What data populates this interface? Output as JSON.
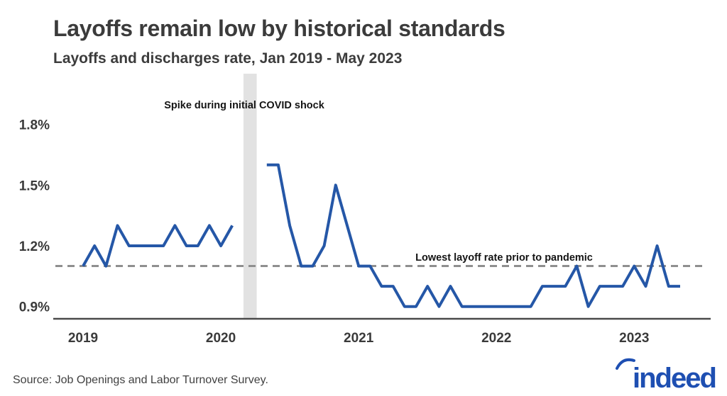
{
  "header": {
    "title": "Layoffs remain low by historical standards",
    "subtitle": "Layoffs and discharges rate, Jan 2019 - May 2023"
  },
  "chart_data": {
    "type": "line",
    "title": "Layoffs remain low by historical standards",
    "subtitle": "Layoffs and discharges rate, Jan 2019 - May 2023",
    "x_unit": "month",
    "x_range": [
      "2019-01",
      "2023-05"
    ],
    "x_tick_labels": [
      "2019",
      "2020",
      "2021",
      "2022",
      "2023"
    ],
    "x_tick_month_index": [
      0,
      12,
      24,
      36,
      48
    ],
    "y_tick_labels": [
      "1.8%",
      "1.5%",
      "1.2%",
      "0.9%"
    ],
    "y_tick_values": [
      1.8,
      1.5,
      1.2,
      0.9
    ],
    "ylim": [
      0.78,
      1.98
    ],
    "grid": "off",
    "legend": "none",
    "series": [
      {
        "name": "Layoffs and discharges rate (%)",
        "values": [
          1.1,
          1.2,
          1.1,
          1.3,
          1.2,
          1.2,
          1.2,
          1.2,
          1.3,
          1.2,
          1.2,
          1.3,
          1.2,
          1.3,
          null,
          null,
          1.6,
          1.6,
          1.3,
          1.1,
          1.1,
          1.2,
          1.5,
          1.3,
          1.1,
          1.1,
          1.0,
          1.0,
          0.9,
          0.9,
          1.0,
          0.9,
          1.0,
          0.9,
          0.9,
          0.9,
          0.9,
          0.9,
          0.9,
          0.9,
          1.0,
          1.0,
          1.0,
          1.1,
          0.9,
          1.0,
          1.0,
          1.0,
          1.1,
          1.0,
          1.2,
          1.0,
          1.0
        ],
        "gap_note": "Mar-Apr 2020 values spike off-chart (COVID shock), line not drawn"
      }
    ],
    "reference_line": {
      "value": 1.1,
      "style": "dashed",
      "label": "Lowest layoff rate prior to pandemic"
    },
    "shaded_region": {
      "from_month_index": 14,
      "to_month_index": 15,
      "label": "Spike during initial COVID shock"
    },
    "colors": {
      "line": "#2557a7",
      "reference_line": "#8f8f8f",
      "shaded_region": "#e2e2e2",
      "axis": "#4a4a4a",
      "tick_text": "#3a3a3a",
      "annotation_text": "#141414"
    }
  },
  "footer": {
    "source": "Source: Job Openings and Labor Turnover Survey.",
    "logo_text": "indeed",
    "logo_color": "#1e4fb2"
  }
}
